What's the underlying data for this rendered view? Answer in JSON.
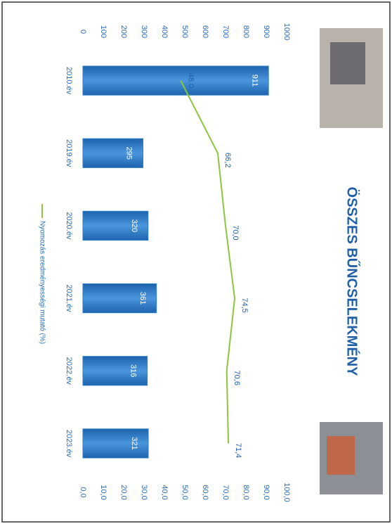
{
  "chart_data": {
    "type": "bar-line",
    "title": "ÖSSZES  BŰNCSELEKMÉNY",
    "categories": [
      "2010.év",
      "2019.év",
      "2020.év",
      "2021.év",
      "2022.év",
      "2023.év"
    ],
    "series": [
      {
        "type": "bar",
        "color": "#2f7fcb",
        "values": [
          911,
          295,
          320,
          361,
          316,
          321
        ]
      },
      {
        "type": "line",
        "name": "Nyomozás eredményességi mutató (%)",
        "color": "#8cc63f",
        "axis": "y2",
        "values": [
          48.0,
          66.2,
          70.0,
          74.5,
          70.6,
          71.4
        ],
        "value_labels": [
          "48.0",
          "66,2",
          "70,0",
          "74,5",
          "70,6",
          "71,4"
        ]
      }
    ],
    "ylim": [
      0,
      1000
    ],
    "yticks": [
      0,
      100,
      200,
      300,
      400,
      500,
      600,
      700,
      800,
      900,
      1000
    ],
    "y2lim": [
      0,
      100
    ],
    "y2ticks": [
      {
        "value": 0,
        "label": "0,0"
      },
      {
        "value": 10,
        "label": "10,0"
      },
      {
        "value": 20,
        "label": "20,0"
      },
      {
        "value": 30,
        "label": "30,0"
      },
      {
        "value": 40,
        "label": "40,0"
      },
      {
        "value": 50,
        "label": "50,0"
      },
      {
        "value": 60,
        "label": "60,0"
      },
      {
        "value": 70,
        "label": "70,0"
      },
      {
        "value": 80,
        "label": "80,0"
      },
      {
        "value": 90,
        "label": "90,0"
      },
      {
        "value": 100,
        "label": "100,0"
      }
    ],
    "grid": false,
    "legend": "bottom"
  }
}
